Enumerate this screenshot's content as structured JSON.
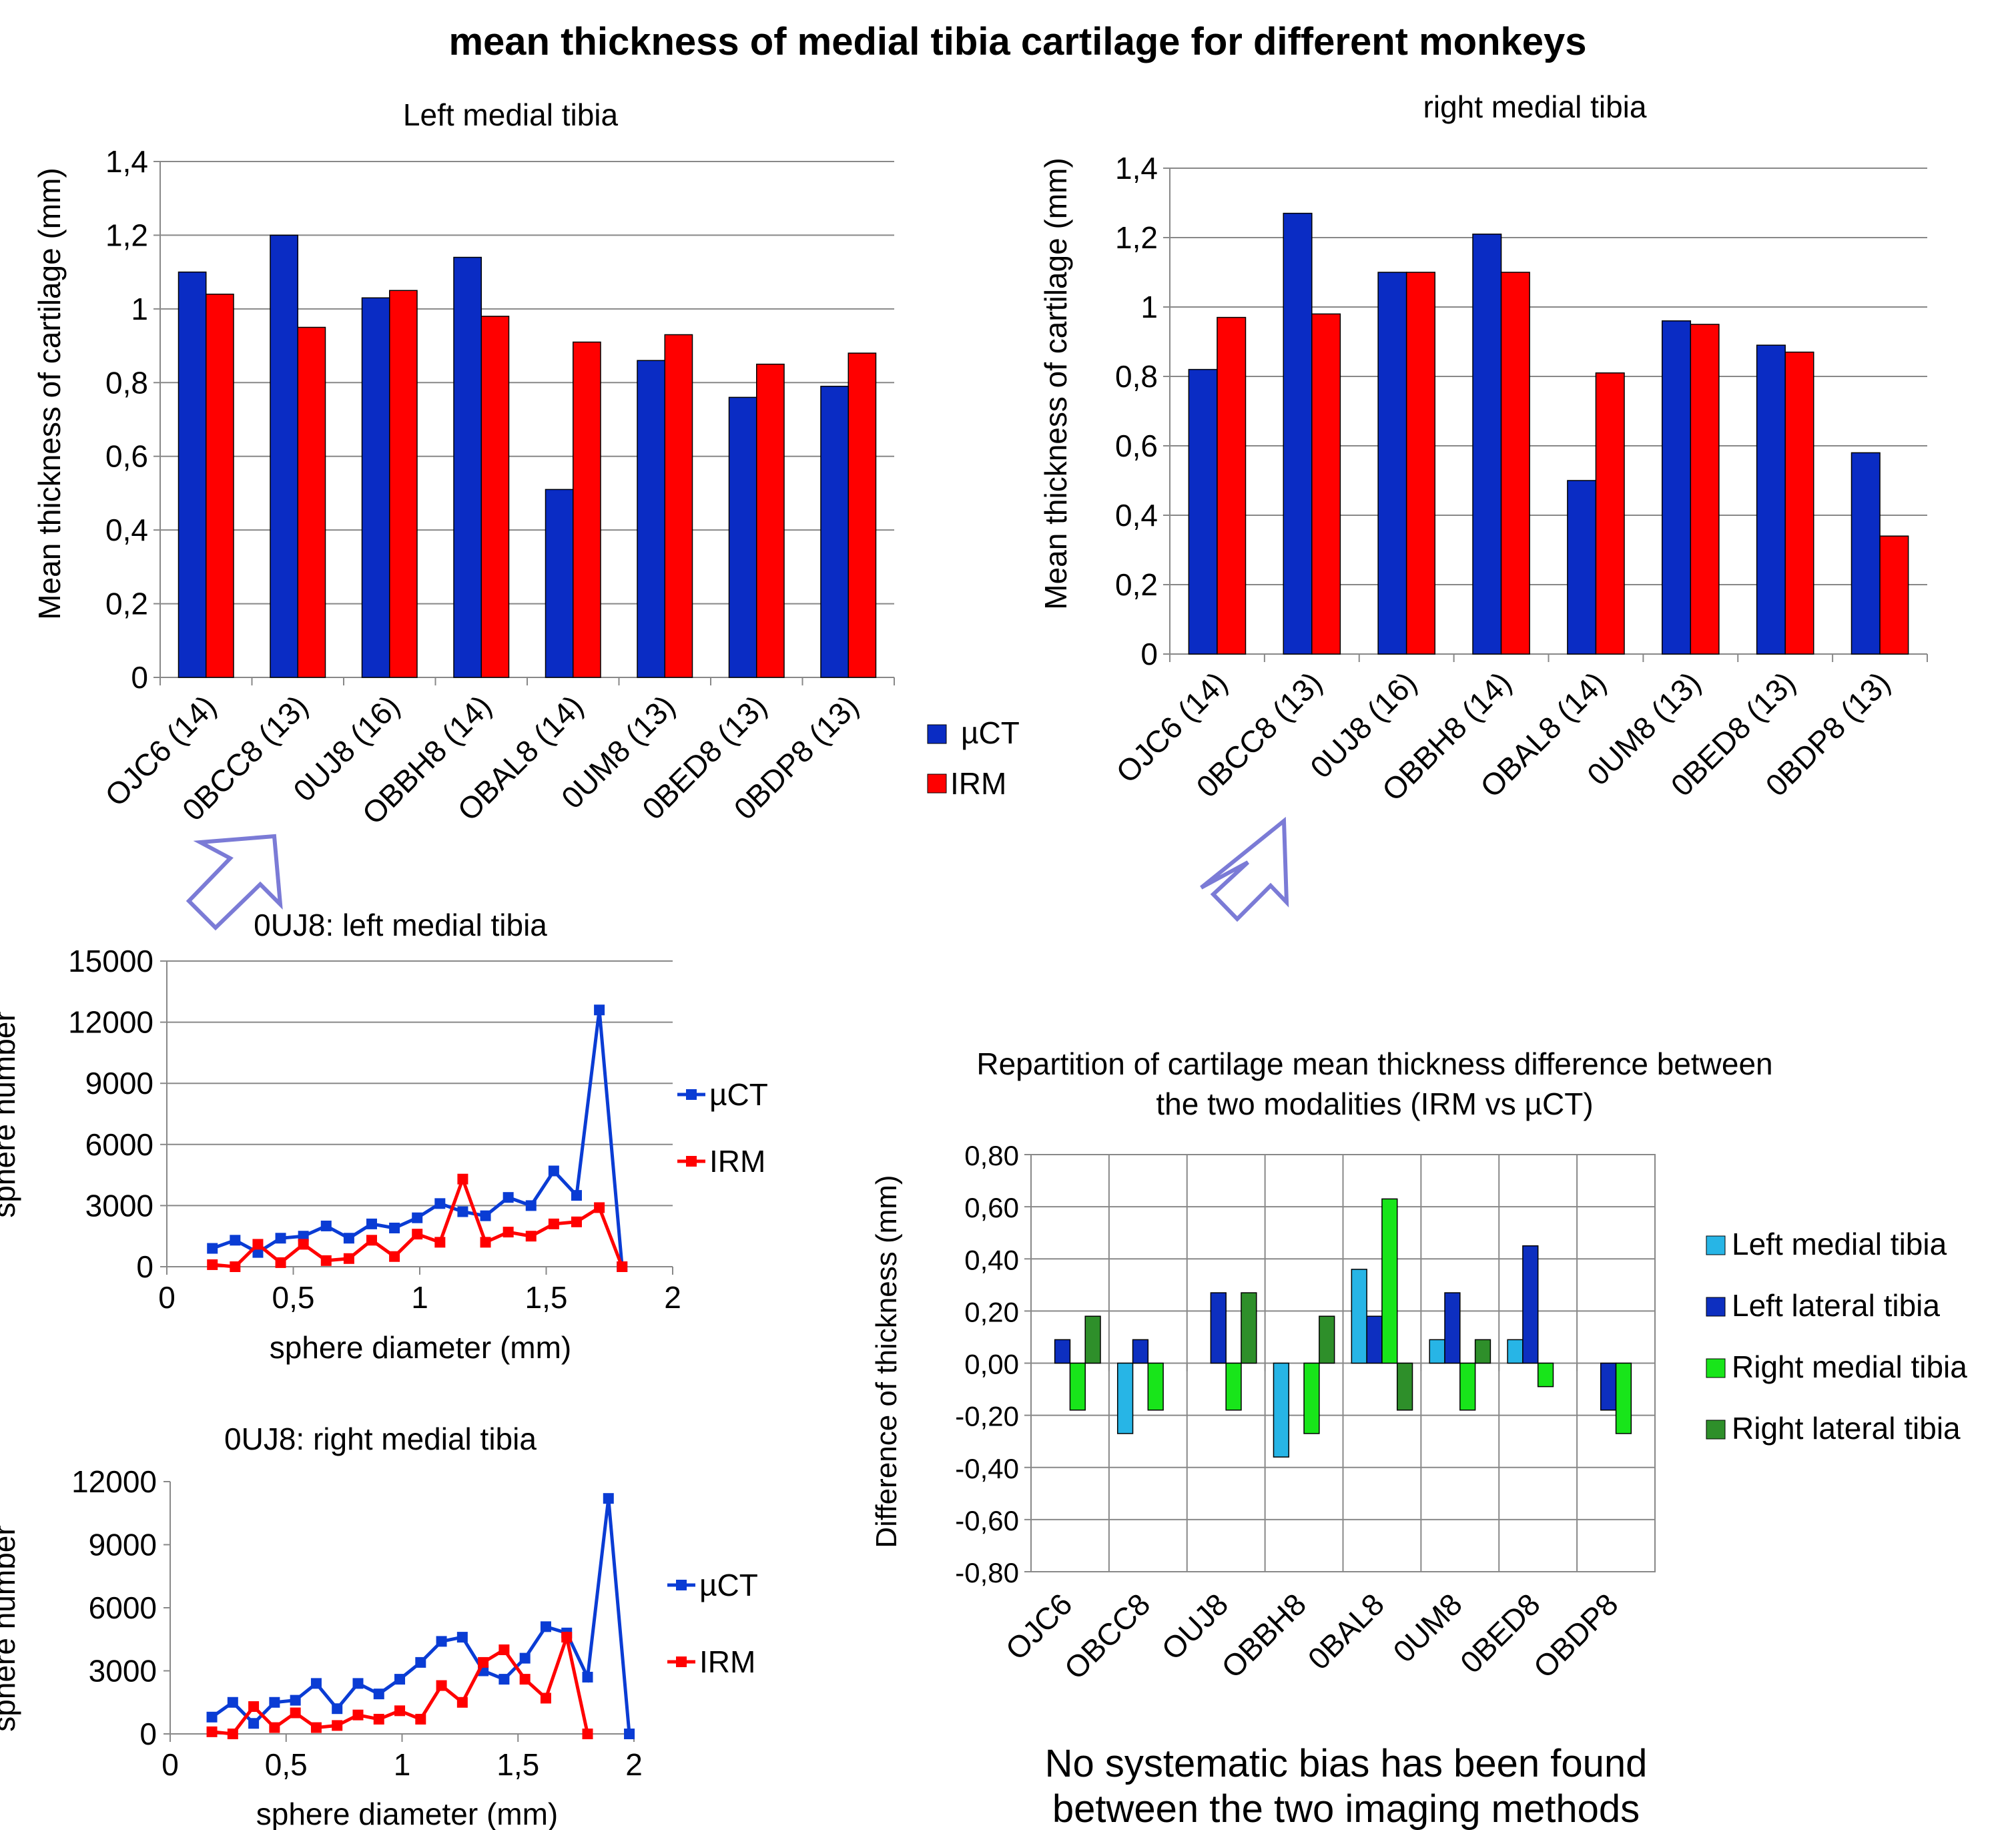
{
  "page": {
    "main_title": "mean thickness of  medial tibia cartilage for different  monkeys",
    "conclusion_line1": "No systematic bias has been found",
    "conclusion_line2": "between the two imaging methods",
    "annotations": [
      {
        "shape": "hollow-arrow",
        "color": "#7b7bd6",
        "meaning": "points to 0UJ8 in left medial chart"
      },
      {
        "shape": "hollow-arrow",
        "color": "#7b7bd6",
        "meaning": "points to 0UJ8 in right medial chart"
      }
    ]
  },
  "chart_data": [
    {
      "id": "left_bar",
      "type": "bar",
      "title": "Left medial tibia",
      "ylabel": "Mean thickness of cartilage (mm)",
      "xlabel": "",
      "categories": [
        "OJC6 (14)",
        "0BCC8 (13)",
        "0UJ8 (16)",
        "OBBH8 (14)",
        "OBAL8 (14)",
        "0UM8 (13)",
        "0BED8 (13)",
        "0BDP8 (13)"
      ],
      "ylim": [
        0,
        1.4
      ],
      "yticks": [
        "0",
        "0,2",
        "0,4",
        "0,6",
        "0,8",
        "1",
        "1,2",
        "1,4"
      ],
      "series": [
        {
          "name": "µCT",
          "color": "#0a2cc4",
          "values": [
            1.1,
            1.2,
            1.03,
            1.14,
            0.51,
            0.86,
            0.76,
            0.79
          ]
        },
        {
          "name": "IRM",
          "color": "#ff0000",
          "values": [
            1.04,
            0.95,
            1.05,
            0.98,
            0.91,
            0.93,
            0.85,
            0.88
          ]
        }
      ],
      "legend": [
        "µCT",
        "IRM"
      ],
      "grid": true
    },
    {
      "id": "right_bar",
      "type": "bar",
      "title": "right medial tibia",
      "ylabel": "Mean thickness of cartilage (mm)",
      "xlabel": "",
      "categories": [
        "OJC6 (14)",
        "0BCC8 (13)",
        "0UJ8 (16)",
        "OBBH8 (14)",
        "OBAL8 (14)",
        "0UM8 (13)",
        "0BED8 (13)",
        "0BDP8 (13)"
      ],
      "ylim": [
        0,
        1.4
      ],
      "yticks": [
        "0",
        "0,2",
        "0,4",
        "0,6",
        "0,8",
        "1",
        "1,2",
        "1,4"
      ],
      "series": [
        {
          "name": "µCT",
          "color": "#0a2cc4",
          "values": [
            0.82,
            1.27,
            1.1,
            1.21,
            0.5,
            0.96,
            0.89,
            0.58
          ]
        },
        {
          "name": "IRM",
          "color": "#ff0000",
          "values": [
            0.97,
            0.98,
            1.1,
            1.1,
            0.81,
            0.95,
            0.87,
            0.34
          ]
        }
      ],
      "grid": true
    },
    {
      "id": "left_line",
      "type": "line",
      "title": "0UJ8: left medial tibia",
      "xlabel": "sphere diameter (mm)",
      "ylabel": "sphere number",
      "xlim": [
        0,
        2
      ],
      "ylim": [
        0,
        15000
      ],
      "xticks": [
        "0",
        "0,5",
        "1",
        "1,5",
        "2"
      ],
      "yticks": [
        "0",
        "3000",
        "6000",
        "9000",
        "12000",
        "15000"
      ],
      "series": [
        {
          "name": "µCT",
          "color": "#0a3cd4",
          "marker": "square",
          "x": [
            0.18,
            0.27,
            0.36,
            0.45,
            0.54,
            0.63,
            0.72,
            0.81,
            0.9,
            0.99,
            1.08,
            1.17,
            1.26,
            1.35,
            1.44,
            1.53,
            1.62,
            1.71,
            1.8
          ],
          "y": [
            900,
            1300,
            700,
            1400,
            1500,
            2000,
            1400,
            2100,
            1900,
            2400,
            3100,
            2700,
            2500,
            3400,
            3000,
            4700,
            3500,
            12600,
            0
          ]
        },
        {
          "name": "IRM",
          "color": "#ff0000",
          "marker": "square",
          "x": [
            0.18,
            0.27,
            0.36,
            0.45,
            0.54,
            0.63,
            0.72,
            0.81,
            0.9,
            0.99,
            1.08,
            1.17,
            1.26,
            1.35,
            1.44,
            1.53,
            1.62,
            1.71,
            1.8
          ],
          "y": [
            100,
            0,
            1100,
            200,
            1100,
            300,
            400,
            1300,
            500,
            1600,
            1200,
            4300,
            1200,
            1700,
            1500,
            2100,
            2200,
            2900,
            0
          ]
        }
      ],
      "grid": true
    },
    {
      "id": "right_line",
      "type": "line",
      "title": "0UJ8: right medial tibia",
      "xlabel": "sphere diameter (mm)",
      "ylabel": "sphere number",
      "xlim": [
        0,
        2
      ],
      "ylim": [
        0,
        12000
      ],
      "xticks": [
        "0",
        "0,5",
        "1",
        "1,5",
        "2"
      ],
      "yticks": [
        "0",
        "3000",
        "6000",
        "9000",
        "12000"
      ],
      "series": [
        {
          "name": "µCT",
          "color": "#0a3cd4",
          "marker": "square",
          "x": [
            0.18,
            0.27,
            0.36,
            0.45,
            0.54,
            0.63,
            0.72,
            0.81,
            0.9,
            0.99,
            1.08,
            1.17,
            1.26,
            1.35,
            1.44,
            1.53,
            1.62,
            1.71,
            1.8,
            1.89,
            1.98
          ],
          "y": [
            800,
            1500,
            500,
            1500,
            1600,
            2400,
            1200,
            2400,
            1900,
            2600,
            3400,
            4400,
            4600,
            3000,
            2600,
            3600,
            5100,
            4800,
            2700,
            11200,
            0
          ]
        },
        {
          "name": "IRM",
          "color": "#ff0000",
          "marker": "square",
          "x": [
            0.18,
            0.27,
            0.36,
            0.45,
            0.54,
            0.63,
            0.72,
            0.81,
            0.9,
            0.99,
            1.08,
            1.17,
            1.26,
            1.35,
            1.44,
            1.53,
            1.62,
            1.71,
            1.8
          ],
          "y": [
            100,
            0,
            1300,
            300,
            1000,
            300,
            400,
            900,
            700,
            1100,
            700,
            2300,
            1500,
            3400,
            4000,
            2600,
            1700,
            4600,
            0
          ]
        }
      ],
      "grid": false
    },
    {
      "id": "diff_bar",
      "type": "bar",
      "title_line1": "Repartition of cartilage mean thickness difference between",
      "title_line2": "the two modalities (IRM vs µCT)",
      "ylabel": "Difference of thickness (mm)",
      "xlabel": "",
      "categories": [
        "OJC6",
        "OBCC8",
        "OUJ8",
        "OBBH8",
        "0BAL8",
        "0UM8",
        "0BED8",
        "OBDP8"
      ],
      "ylim": [
        -0.8,
        0.8
      ],
      "yticks": [
        "-0,80",
        "-0,60",
        "-0,40",
        "-0,20",
        "0,00",
        "0,20",
        "0,40",
        "0,60",
        "0,80"
      ],
      "series": [
        {
          "name": "Left medial tibia",
          "color": "#27b5e6",
          "values": [
            0,
            -0.27,
            0,
            -0.36,
            0.36,
            0.09,
            0.09,
            0
          ]
        },
        {
          "name": "Left lateral tibia",
          "color": "#0d2fc0",
          "values": [
            0.09,
            0.09,
            0.27,
            0,
            0.18,
            0.27,
            0.45,
            -0.18
          ]
        },
        {
          "name": "Right medial tibia",
          "color": "#18e51a",
          "values": [
            -0.18,
            -0.18,
            -0.18,
            -0.27,
            0.63,
            -0.18,
            -0.09,
            -0.27
          ]
        },
        {
          "name": "Right lateral tibia",
          "color": "#2e8f2a",
          "values": [
            0.18,
            0,
            0.27,
            0.18,
            -0.18,
            0.09,
            0,
            0
          ]
        }
      ],
      "grid": true
    }
  ]
}
